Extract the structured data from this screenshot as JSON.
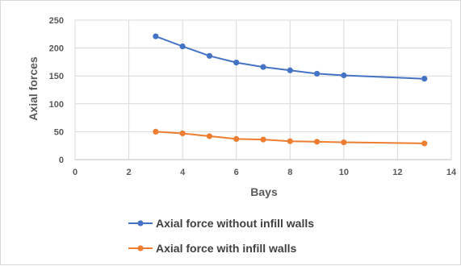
{
  "chart_data": {
    "type": "line",
    "title": "",
    "xlabel": "Bays",
    "ylabel": "Axial forces",
    "xlim": [
      0,
      14
    ],
    "ylim": [
      0,
      250
    ],
    "xticks": [
      0,
      2,
      4,
      6,
      8,
      10,
      12,
      14
    ],
    "yticks": [
      0,
      50,
      100,
      150,
      200,
      250
    ],
    "grid": "vertical and horizontal",
    "legend_position": "bottom",
    "series": [
      {
        "name": "Axial force without infill walls",
        "color": "#4472C4",
        "marker": "circle",
        "x": [
          3,
          4,
          5,
          6,
          7,
          8,
          9,
          10,
          13
        ],
        "y": [
          221,
          203,
          186,
          174,
          166,
          160,
          154,
          151,
          145
        ]
      },
      {
        "name": "Axial force with infill walls",
        "color": "#ED7D31",
        "marker": "circle",
        "x": [
          3,
          4,
          5,
          6,
          7,
          8,
          9,
          10,
          13
        ],
        "y": [
          50,
          47,
          42,
          37,
          36,
          33,
          32,
          31,
          29
        ]
      }
    ]
  }
}
